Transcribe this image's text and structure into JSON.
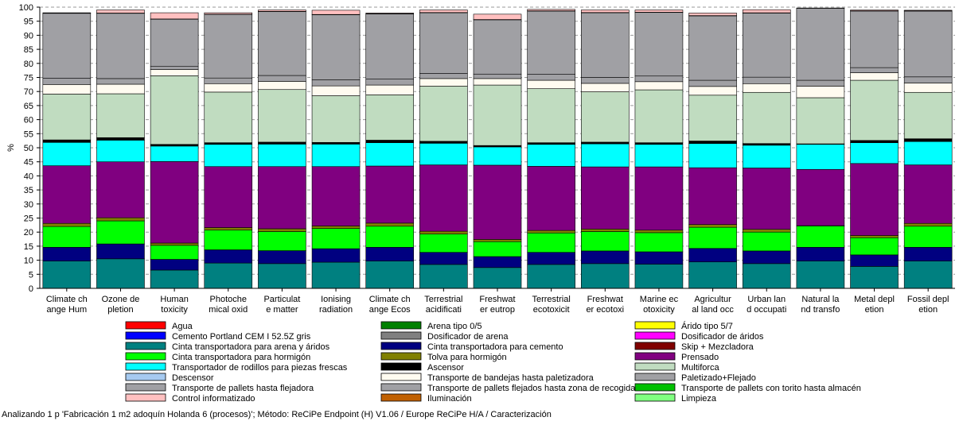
{
  "footer": "Analizando 1 p 'Fabricación 1 m2 adoquín Holanda 6 (procesos)'; Método: ReCiPe Endpoint (H) V1.06 / Europe ReCiPe H/A / Caracterización",
  "chart_data": {
    "type": "bar",
    "stacked": true,
    "title": "",
    "xlabel": "",
    "ylabel": "%",
    "ylim": [
      0,
      100
    ],
    "yticks": [
      0,
      5,
      10,
      15,
      20,
      25,
      30,
      35,
      40,
      45,
      50,
      55,
      60,
      65,
      70,
      75,
      80,
      85,
      90,
      95,
      100
    ],
    "grid": "horizontal dashed",
    "legend_position": "bottom",
    "categories": [
      [
        "Climate ch",
        "ange Hum"
      ],
      [
        "Ozone de",
        "pletion"
      ],
      [
        "Human",
        "toxicity"
      ],
      [
        "Photoche",
        "mical oxid"
      ],
      [
        "Particulat",
        "e matter"
      ],
      [
        "Ionising",
        "radiation"
      ],
      [
        "Climate ch",
        "ange Ecos"
      ],
      [
        "Terrestrial",
        "acidificati"
      ],
      [
        "Freshwat",
        "er eutrop"
      ],
      [
        "Terrestrial",
        "ecotoxicit"
      ],
      [
        "Freshwat",
        "er ecotoxi"
      ],
      [
        "Marine ec",
        "otoxicity"
      ],
      [
        "Agricultur",
        "al land occ"
      ],
      [
        "Urban lan",
        "d occupati"
      ],
      [
        "Natural la",
        "nd transfo"
      ],
      [
        "Metal depl",
        "etion"
      ],
      [
        "Fossil depl",
        "etion"
      ]
    ],
    "series": [
      {
        "name": "Agua",
        "color": "#ff0000",
        "values": [
          0,
          0,
          0,
          0,
          0,
          0,
          0,
          0,
          0,
          0,
          0,
          0,
          0,
          0,
          0,
          0,
          0
        ]
      },
      {
        "name": "Arena tipo 0/5",
        "color": "#008000",
        "values": [
          0,
          0,
          0,
          0,
          0,
          0,
          0,
          0,
          0,
          0,
          0,
          0,
          0,
          0,
          0,
          0,
          0
        ]
      },
      {
        "name": "Árido tipo 5/7",
        "color": "#ffff00",
        "values": [
          0,
          0,
          0,
          0,
          0,
          0,
          0,
          0,
          0,
          0,
          0,
          0,
          0,
          0,
          0,
          0,
          0
        ]
      },
      {
        "name": "Cemento Portland CEM I 52.5Z gris",
        "color": "#0000ff",
        "values": [
          0,
          0,
          0,
          0,
          0,
          0,
          0,
          0,
          0,
          0,
          0,
          0,
          0,
          0,
          0,
          0,
          0
        ]
      },
      {
        "name": "Dosificador de arena",
        "color": "#808080",
        "values": [
          0,
          0,
          0,
          0,
          0,
          0,
          0,
          0,
          0,
          0,
          0,
          0,
          0,
          0,
          0,
          0,
          0
        ]
      },
      {
        "name": "Dosificador de áridos",
        "color": "#ff00ff",
        "values": [
          0,
          0,
          0,
          0,
          0,
          0,
          0,
          0,
          0,
          0,
          0,
          0,
          0,
          0,
          0,
          0,
          0
        ]
      },
      {
        "name": "Cinta transportadora para arena y áridos",
        "color": "#008080",
        "values": [
          9.7,
          10.5,
          6.5,
          9,
          8.8,
          9.3,
          9.7,
          8.5,
          7.4,
          8.5,
          8.8,
          8.6,
          9.4,
          8.8,
          9.7,
          7.8,
          9.7
        ]
      },
      {
        "name": "Cinta transportadora para cemento",
        "color": "#000080",
        "values": [
          4.9,
          5.3,
          3.8,
          4.7,
          4.6,
          4.8,
          4.9,
          4.3,
          3.9,
          4.3,
          4.5,
          4.4,
          4.8,
          4.5,
          4.9,
          4.1,
          4.9
        ]
      },
      {
        "name": "Skip + Mezcladora",
        "color": "#800000",
        "values": [
          0,
          0,
          0,
          0,
          0,
          0,
          0,
          0,
          0,
          0,
          0,
          0,
          0,
          0,
          0,
          0,
          0
        ]
      },
      {
        "name": "Cinta transportadora para hormigón",
        "color": "#00ff00",
        "values": [
          7.4,
          8.2,
          5,
          7,
          6.8,
          7.2,
          7.5,
          6.5,
          5.3,
          6.9,
          6.9,
          6.8,
          7.5,
          6.7,
          7.6,
          6.1,
          7.5
        ]
      },
      {
        "name": "Tolva para hormigón",
        "color": "#808000",
        "values": [
          1.1,
          1.1,
          0.8,
          0.9,
          1,
          0.9,
          1.1,
          1,
          0.8,
          0.9,
          0.9,
          0.9,
          1,
          1,
          0.1,
          0.8,
          1
        ]
      },
      {
        "name": "Prensado",
        "color": "#800080",
        "values": [
          20.5,
          19.9,
          29,
          21.7,
          22.1,
          21.1,
          20.3,
          23.6,
          26.4,
          22.8,
          22.1,
          22.5,
          20.2,
          21.8,
          20,
          25.6,
          20.8
        ]
      },
      {
        "name": "Transportador de rodillos para piezas frescas",
        "color": "#00ffff",
        "values": [
          8.3,
          7.7,
          5.5,
          7.9,
          8,
          8,
          8.3,
          7.7,
          6.5,
          7.8,
          8.2,
          8,
          8.6,
          8.1,
          8.9,
          7.4,
          8.3
        ]
      },
      {
        "name": "Ascensor",
        "color": "#000000",
        "values": [
          0.9,
          0.9,
          0.6,
          0.6,
          0.7,
          0.6,
          0.9,
          0.7,
          0.5,
          0.6,
          0.6,
          0.6,
          0.9,
          0.6,
          0.2,
          0.8,
          1
        ]
      },
      {
        "name": "Multiforca",
        "color": "#c0dcc0",
        "values": [
          16.3,
          15.6,
          24.4,
          18,
          18.7,
          16.6,
          16.1,
          19.6,
          21.5,
          19.2,
          17.9,
          18.8,
          16.3,
          18.2,
          16.4,
          21.4,
          16.5
        ]
      },
      {
        "name": "Descensor",
        "color": "#a6caf0",
        "values": [
          0,
          0,
          0,
          0,
          0,
          0,
          0,
          0,
          0,
          0,
          0,
          0,
          0,
          0,
          0,
          0,
          0
        ]
      },
      {
        "name": "Transporte de bandejas hasta paletizadora",
        "color": "#fffbf0",
        "values": [
          3.4,
          3.4,
          2.2,
          3,
          2.9,
          3.5,
          3.5,
          2.7,
          2.3,
          3,
          3,
          2.9,
          3.1,
          3.1,
          4.1,
          2.7,
          3.3
        ]
      },
      {
        "name": "Paletizado+Flejado",
        "color": "#a0a0a4",
        "values": [
          2.2,
          2,
          1.1,
          2,
          2.1,
          2.2,
          2.1,
          1.8,
          1.6,
          2.1,
          2.1,
          2,
          2.2,
          2.3,
          2.1,
          1.8,
          2.2
        ]
      },
      {
        "name": "Transporte de pallets hasta flejadora",
        "color": "#a0a0a4",
        "values": [
          23.1,
          23.2,
          16.8,
          22.6,
          22.7,
          23.1,
          23.2,
          21.6,
          19.3,
          22.5,
          23,
          22.6,
          22.9,
          22.8,
          25.6,
          20.1,
          23.4
        ]
      },
      {
        "name": "Transporte de pallets flejados hasta zona de recogida",
        "color": "#a0a0a4",
        "values": [
          0,
          0,
          0,
          0,
          0,
          0,
          0,
          0,
          0,
          0,
          0,
          0,
          0,
          0,
          0,
          0,
          0
        ]
      },
      {
        "name": "Transporte de pallets con torito hasta almacén",
        "color": "#00c000",
        "values": [
          0.1,
          0.1,
          0.1,
          0.1,
          0.1,
          0.1,
          0.1,
          0.1,
          0.1,
          0.1,
          0.1,
          0.1,
          0.1,
          0.1,
          0.1,
          0.1,
          0.1
        ]
      },
      {
        "name": "Control informatizado",
        "color": "#ffc0c0",
        "values": [
          0.1,
          1.1,
          2.2,
          0.5,
          0.5,
          1.5,
          0.2,
          0.9,
          1.9,
          0.5,
          0.9,
          0.8,
          0.9,
          1.1,
          0,
          0.3,
          0.2
        ]
      },
      {
        "name": "Iluminación",
        "color": "#c06000",
        "values": [
          0,
          0,
          0,
          0,
          0,
          0,
          0,
          0,
          0,
          0,
          0,
          0,
          0,
          0,
          0,
          0,
          0
        ]
      },
      {
        "name": "Limpieza",
        "color": "#80ff80",
        "values": [
          0,
          0,
          0,
          0,
          0,
          0,
          0,
          0,
          0,
          0,
          0,
          0,
          0,
          0,
          0,
          0,
          0
        ]
      }
    ],
    "legend_columns": [
      [
        "Agua",
        "Cemento Portland CEM I 52.5Z gris",
        "Cinta transportadora para arena y áridos",
        "Cinta transportadora para hormigón",
        "Transportador de rodillos para piezas frescas",
        "Descensor",
        "Transporte de pallets hasta flejadora",
        "Control informatizado"
      ],
      [
        "Arena tipo 0/5",
        "Dosificador de arena",
        "Cinta transportadora para cemento",
        "Tolva para hormigón",
        "Ascensor",
        "Transporte de bandejas hasta paletizadora",
        "Transporte de pallets flejados hasta zona de recogida",
        "Iluminación"
      ],
      [
        "Árido tipo 5/7",
        "Dosificador de áridos",
        "Skip + Mezcladora",
        "Prensado",
        "Multiforca",
        "Paletizado+Flejado",
        "Transporte de pallets con torito hasta almacén",
        "Limpieza"
      ]
    ]
  }
}
